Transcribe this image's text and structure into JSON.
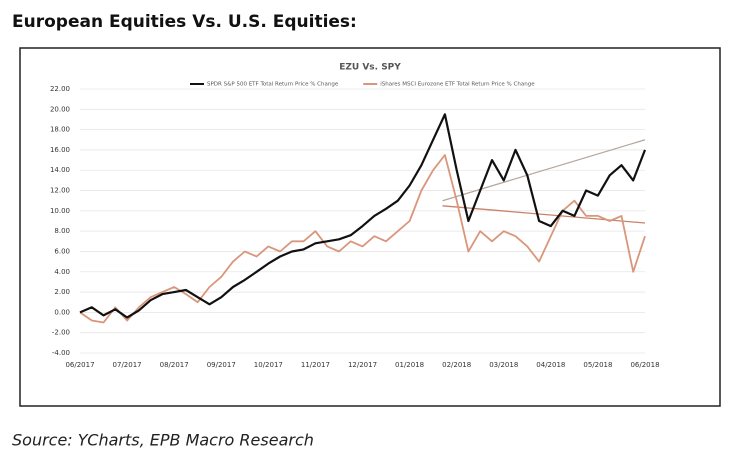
{
  "header": {
    "title": "European Equities Vs. U.S. Equities:"
  },
  "source": "Source: YCharts, EPB Macro Research",
  "chart_data": {
    "type": "line",
    "title": "EZU Vs. SPY",
    "x": [
      0,
      0.25,
      0.5,
      0.75,
      1,
      1.25,
      1.5,
      1.75,
      2,
      2.25,
      2.5,
      2.75,
      3,
      3.25,
      3.5,
      3.75,
      4,
      4.25,
      4.5,
      4.75,
      5,
      5.25,
      5.5,
      5.75,
      6,
      6.25,
      6.5,
      6.75,
      7,
      7.25,
      7.5,
      7.75,
      8,
      8.25,
      8.5,
      8.75,
      9,
      9.25,
      9.5,
      9.75,
      10,
      10.25,
      10.5,
      10.75,
      11,
      11.25,
      11.5,
      11.75,
      12
    ],
    "series": [
      {
        "name": "SPDR S&P 500 ETF Total Return Price % Change",
        "color": "#111111",
        "values": [
          0,
          0.5,
          -0.3,
          0.3,
          -0.5,
          0.2,
          1.2,
          1.8,
          2.0,
          2.2,
          1.5,
          0.8,
          1.5,
          2.5,
          3.2,
          4.0,
          4.8,
          5.5,
          6.0,
          6.2,
          6.8,
          7.0,
          7.2,
          7.6,
          8.5,
          9.5,
          10.2,
          11.0,
          12.5,
          14.5,
          17.0,
          19.5,
          14.0,
          9.0,
          12.0,
          15.0,
          13.0,
          16.0,
          13.5,
          9.0,
          8.5,
          10.0,
          9.5,
          12.0,
          11.5,
          13.5,
          14.5,
          13.0,
          16.0
        ]
      },
      {
        "name": "iShares MSCI Eurozone ETF Total Return Price % Change",
        "color": "#d9967a",
        "values": [
          0,
          -0.8,
          -1.0,
          0.5,
          -0.8,
          0.5,
          1.5,
          2.0,
          2.5,
          1.8,
          1.0,
          2.5,
          3.5,
          5.0,
          6.0,
          5.5,
          6.5,
          6.0,
          7.0,
          7.0,
          8.0,
          6.5,
          6.0,
          7.0,
          6.5,
          7.5,
          7.0,
          8.0,
          9.0,
          12.0,
          14.0,
          15.5,
          11.0,
          6.0,
          8.0,
          7.0,
          8.0,
          7.5,
          6.5,
          5.0,
          7.5,
          10.0,
          11.0,
          9.5,
          9.5,
          9.0,
          9.5,
          4.0,
          7.5
        ]
      }
    ],
    "trendlines": [
      {
        "color": "#b5a89c",
        "x": [
          7.7,
          12
        ],
        "values": [
          11,
          17
        ]
      },
      {
        "color": "#c9826a",
        "x": [
          7.7,
          12
        ],
        "values": [
          10.5,
          8.8
        ]
      }
    ],
    "xlim": [
      0,
      12
    ],
    "xticks": [
      {
        "value": 0,
        "label": "06/2017"
      },
      {
        "value": 1,
        "label": "07/2017"
      },
      {
        "value": 2,
        "label": "08/2017"
      },
      {
        "value": 3,
        "label": "09/2017"
      },
      {
        "value": 4,
        "label": "10/2017"
      },
      {
        "value": 5,
        "label": "11/2017"
      },
      {
        "value": 6,
        "label": "12/2017"
      },
      {
        "value": 7,
        "label": "01/2018"
      },
      {
        "value": 8,
        "label": "02/2018"
      },
      {
        "value": 9,
        "label": "03/2018"
      },
      {
        "value": 10,
        "label": "04/2018"
      },
      {
        "value": 11,
        "label": "05/2018"
      },
      {
        "value": 12,
        "label": "06/2018"
      }
    ],
    "ylim": [
      -4,
      22
    ],
    "yticks": [
      {
        "value": -4,
        "label": "-4.00"
      },
      {
        "value": -2,
        "label": "-2.00"
      },
      {
        "value": 0,
        "label": "0.00"
      },
      {
        "value": 2,
        "label": "2.00"
      },
      {
        "value": 4,
        "label": "4.00"
      },
      {
        "value": 6,
        "label": "6.00"
      },
      {
        "value": 8,
        "label": "8.00"
      },
      {
        "value": 10,
        "label": "10.00"
      },
      {
        "value": 12,
        "label": "12.00"
      },
      {
        "value": 14,
        "label": "14.00"
      },
      {
        "value": 16,
        "label": "16.00"
      },
      {
        "value": 18,
        "label": "18.00"
      },
      {
        "value": 20,
        "label": "20.00"
      },
      {
        "value": 22,
        "label": "22.00"
      }
    ],
    "grid": true
  }
}
